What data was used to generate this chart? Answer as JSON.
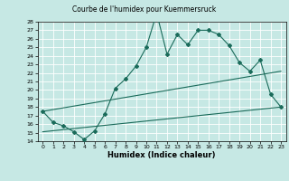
{
  "title": "Courbe de l'humidex pour Kuemmersruck",
  "xlabel": "Humidex (Indice chaleur)",
  "xlim": [
    -0.5,
    23.5
  ],
  "ylim": [
    14,
    28
  ],
  "yticks": [
    14,
    15,
    16,
    17,
    18,
    19,
    20,
    21,
    22,
    23,
    24,
    25,
    26,
    27,
    28
  ],
  "xticks": [
    0,
    1,
    2,
    3,
    4,
    5,
    6,
    7,
    8,
    9,
    10,
    11,
    12,
    13,
    14,
    15,
    16,
    17,
    18,
    19,
    20,
    21,
    22,
    23
  ],
  "bg_color": "#c6e8e4",
  "line_color": "#1a6b5a",
  "grid_color": "#ffffff",
  "line1_x": [
    0,
    1,
    2,
    3,
    4,
    5,
    6,
    7,
    8,
    9,
    10,
    11,
    12,
    13,
    14,
    15,
    16,
    17,
    18,
    19,
    20,
    21,
    22,
    23
  ],
  "line1_y": [
    17.5,
    16.2,
    15.8,
    15.1,
    14.2,
    15.2,
    17.2,
    20.2,
    21.3,
    22.8,
    25.0,
    29.0,
    24.2,
    26.5,
    25.3,
    27.0,
    27.0,
    26.5,
    25.2,
    23.2,
    22.2,
    23.5,
    19.5,
    18.0
  ],
  "line2_x": [
    0,
    23
  ],
  "line2_y": [
    17.5,
    22.2
  ],
  "line3_x": [
    0,
    23
  ],
  "line3_y": [
    15.1,
    18.0
  ],
  "marker_style": "D",
  "marker_size": 2.0,
  "line_width": 0.8,
  "title_fontsize": 5.5,
  "xlabel_fontsize": 6.0,
  "tick_fontsize": 4.5
}
